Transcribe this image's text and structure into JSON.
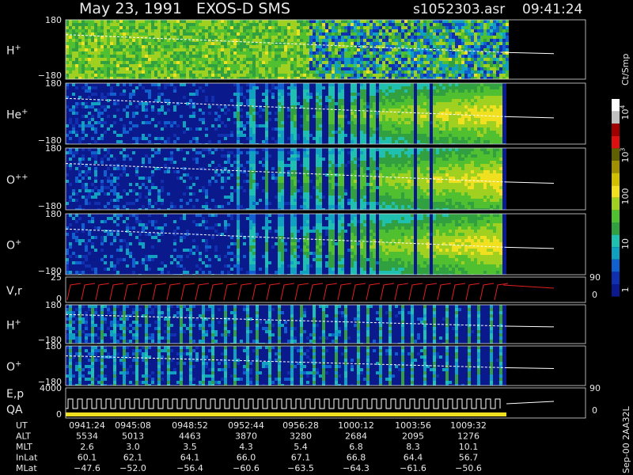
{
  "header": {
    "title": "May 23, 1991   EXOS-D SMS",
    "file": "s1052303.asr",
    "time": "09:41:24"
  },
  "panels": [
    {
      "label": {
        "base": "H",
        "sup": "+"
      },
      "yticks": [
        "180",
        "−180"
      ]
    },
    {
      "label": {
        "base": "He",
        "sup": "+"
      },
      "yticks": [
        "180",
        "−180"
      ]
    },
    {
      "label": {
        "base": "O",
        "sup": "++"
      },
      "yticks": [
        "180",
        "−180"
      ]
    },
    {
      "label": {
        "base": "O",
        "sup": "+"
      },
      "yticks": [
        "180",
        "−180"
      ]
    },
    {
      "label": {
        "base": "V,r"
      },
      "yticks": [
        "25",
        "0"
      ],
      "rticks": [
        "90",
        "0"
      ]
    },
    {
      "label": {
        "base": "H",
        "sup": "+"
      },
      "yticks": [
        "180",
        "−180"
      ]
    },
    {
      "label": {
        "base": "O",
        "sup": "+"
      },
      "yticks": [
        "180",
        "−180"
      ]
    },
    {
      "label": {
        "base": "E,p"
      },
      "label2": "QA",
      "yticks": [
        "4000",
        "0"
      ],
      "rticks": [
        "90",
        "0"
      ]
    }
  ],
  "colorbar": {
    "title": "Ct/Smp",
    "ticks": [
      {
        "base": "10",
        "sup": "4"
      },
      {
        "base": "10",
        "sup": "3"
      },
      {
        "base": "100"
      },
      {
        "base": "10"
      },
      {
        "base": "1"
      }
    ]
  },
  "table": {
    "rows": [
      {
        "label": "UT",
        "cells": [
          "0941:24",
          "0945:08",
          "0948:52",
          "0952:44",
          "0956:28",
          "1000:12",
          "1003:56",
          "1009:32"
        ]
      },
      {
        "label": "ALT",
        "cells": [
          "5534",
          "5013",
          "4463",
          "3870",
          "3280",
          "2684",
          "2095",
          "1276"
        ]
      },
      {
        "label": "MLT",
        "cells": [
          "2.6",
          "3.0",
          "3.5",
          "4.3",
          "5.4",
          "6.8",
          "8.3",
          "10.1"
        ]
      },
      {
        "label": "InLat",
        "cells": [
          "60.1",
          "62.1",
          "64.1",
          "66.0",
          "67.1",
          "66.8",
          "64.4",
          "56.7"
        ]
      },
      {
        "label": "MLat",
        "cells": [
          "−47.6",
          "−52.0",
          "−56.4",
          "−60.6",
          "−63.5",
          "−64.3",
          "−61.6",
          "−50.6"
        ]
      }
    ]
  },
  "footer_note": "Sep-00 2AA32L"
}
